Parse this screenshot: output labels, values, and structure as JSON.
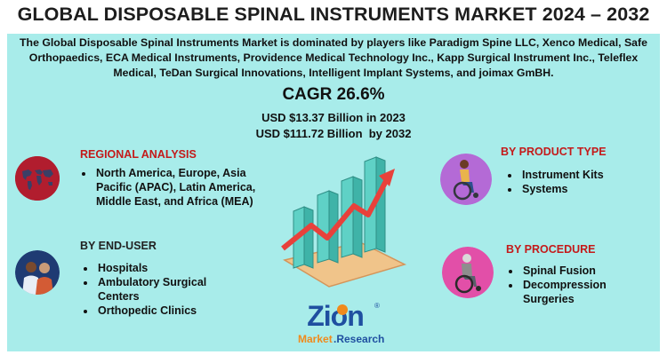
{
  "title": "GLOBAL DISPOSABLE SPINAL INSTRUMENTS MARKET 2024 – 2032",
  "intro": "The Global Disposable Spinal Instruments Market is dominated by players like Paradigm Spine LLC, Xenco Medical, Safe Orthopaedics, ECA Medical Instruments, Providence Medical Technology Inc., Kapp Surgical Instrument Inc., Teleflex Medical, TeDan Surgical Innovations, Intelligent Implant Systems, and joimax GmBH.",
  "cagr": "CAGR 26.6%",
  "usd_2023": "USD $13.37 Billion in 2023",
  "usd_2032": "USD $111.72 Billion  by 2032",
  "regional": {
    "heading": "REGIONAL ANALYSIS",
    "items": [
      "North America, Europe, Asia Pacific (APAC), Latin America, Middle East, and Africa (MEA)"
    ]
  },
  "end_user": {
    "heading": "BY END-USER",
    "items": [
      "Hospitals",
      "Ambulatory Surgical Centers",
      "Orthopedic Clinics"
    ]
  },
  "product_type": {
    "heading": "BY PRODUCT TYPE",
    "items": [
      "Instrument Kits",
      "Systems"
    ]
  },
  "procedure": {
    "heading": "BY PROCEDURE",
    "items": [
      "Spinal Fusion",
      "Decompression Surgeries"
    ]
  },
  "logo": {
    "brand": "Zion",
    "sub1": "Market",
    "sub2": ".Research",
    "mark": "®"
  },
  "icons": [
    "world-map-icon",
    "doctor-patient-icon",
    "wheelchair-icon",
    "elderly-wheelchair-icon",
    "growth-chart-icon"
  ],
  "colors": {
    "panel": "#a8ecea",
    "heading_red": "#c41a1a",
    "logo_blue": "#1f4fa0",
    "logo_orange": "#f08a1c"
  }
}
